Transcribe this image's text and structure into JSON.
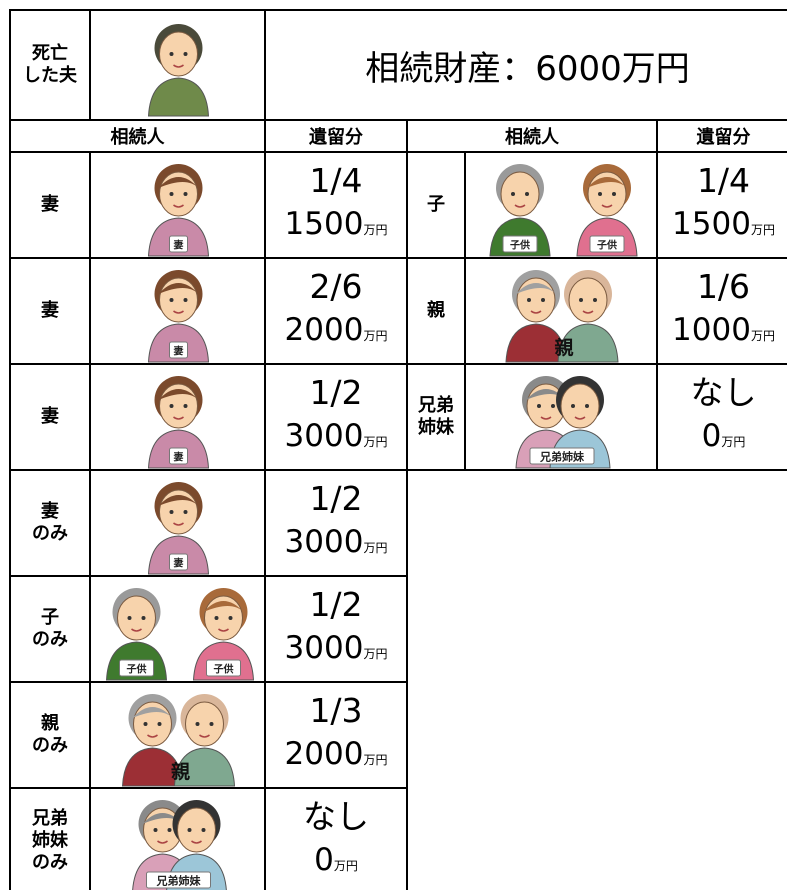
{
  "header": {
    "deceased_label": "死亡\nした夫",
    "estate": "相続財産：6000万円"
  },
  "columns": [
    "相続人",
    "遺留分",
    "相続人",
    "遺留分"
  ],
  "left_rows": [
    {
      "heir": "妻",
      "image_labels": [
        "妻"
      ],
      "share": "1/4",
      "amount": "1500",
      "unit": "万円"
    },
    {
      "heir": "妻",
      "image_labels": [
        "妻"
      ],
      "share": "2/6",
      "amount": "2000",
      "unit": "万円"
    },
    {
      "heir": "妻",
      "image_labels": [
        "妻"
      ],
      "share": "1/2",
      "amount": "3000",
      "unit": "万円"
    },
    {
      "heir": "妻\nのみ",
      "image_labels": [
        "妻"
      ],
      "share": "1/2",
      "amount": "3000",
      "unit": "万円"
    },
    {
      "heir": "子\nのみ",
      "image_labels": [
        "子供",
        "子供"
      ],
      "share": "1/2",
      "amount": "3000",
      "unit": "万円"
    },
    {
      "heir": "親\nのみ",
      "image_labels": [
        "親"
      ],
      "share": "1/3",
      "amount": "2000",
      "unit": "万円"
    },
    {
      "heir": "兄弟\n姉妹\nのみ",
      "image_labels": [
        "兄弟姉妹"
      ],
      "share": "なし",
      "amount": "0",
      "unit": "万円"
    }
  ],
  "right_rows": [
    {
      "heir": "子",
      "image_labels": [
        "子供",
        "子供"
      ],
      "share": "1/4",
      "amount": "1500",
      "unit": "万円"
    },
    {
      "heir": "親",
      "image_labels": [
        "親"
      ],
      "share": "1/6",
      "amount": "1000",
      "unit": "万円"
    },
    {
      "heir": "兄弟\n姉妹",
      "image_labels": [
        "兄弟姉妹"
      ],
      "share": "なし",
      "amount": "0",
      "unit": "万円"
    }
  ]
}
